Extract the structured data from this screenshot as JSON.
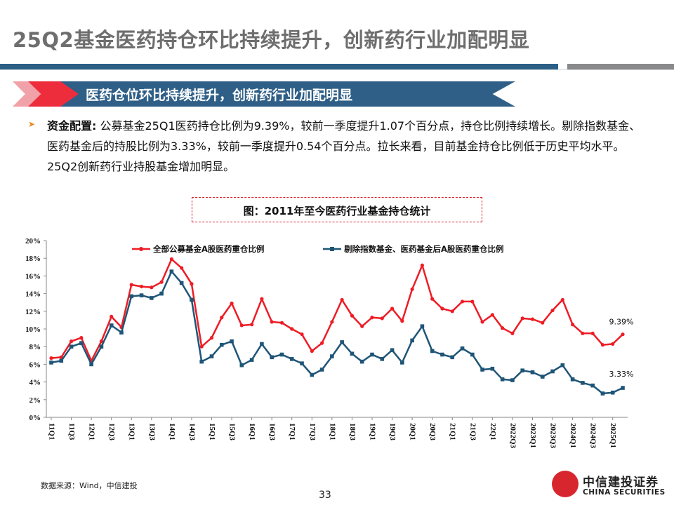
{
  "header": {
    "title": "25Q2基金医药持仓环比持续提升，创新药行业加配明显",
    "banner": "医药仓位环比持续提升，创新药行业加配明显"
  },
  "body": {
    "bullet_label": "资金配置:",
    "bullet_text": " 公募基金25Q1医药持仓比例为9.39%，较前一季度提升1.07个百分点，持仓比例持续增长。剔除指数基金、医药基金后的持股比例为3.33%，较前一季度提升0.54个百分点。拉长来看，目前基金持仓比例低于历史平均水平。25Q2创新药行业持股基金增加明显。"
  },
  "figure": {
    "title": "图：2011年至今医药行业基金持仓统计"
  },
  "chart_data": {
    "type": "line",
    "ylim": [
      0,
      20
    ],
    "yticks": [
      "0%",
      "2%",
      "4%",
      "6%",
      "8%",
      "10%",
      "12%",
      "14%",
      "16%",
      "18%",
      "20%"
    ],
    "xtick_labels": [
      "11Q1",
      "11Q3",
      "12Q1",
      "12Q3",
      "13Q1",
      "13Q3",
      "14Q1",
      "14Q3",
      "15Q1",
      "15Q3",
      "16Q1",
      "16Q3",
      "17Q1",
      "17Q3",
      "18Q1",
      "18Q3",
      "19Q1",
      "19Q3",
      "20Q1",
      "20Q3",
      "21Q1",
      "21Q3",
      "22Q1",
      "2022Q3",
      "2023Q1",
      "2023Q3",
      "2024Q1",
      "2024Q3",
      "2025Q1"
    ],
    "series": [
      {
        "name": "全部公募基金A股医药重仓比例",
        "color": "#ee1c25",
        "values": [
          6.7,
          6.8,
          8.6,
          9.0,
          6.4,
          8.6,
          11.4,
          10.2,
          15.0,
          14.8,
          14.7,
          15.3,
          17.9,
          16.9,
          15.1,
          8.0,
          9.0,
          11.3,
          12.9,
          10.4,
          10.5,
          13.4,
          10.8,
          10.7,
          10.0,
          9.4,
          7.5,
          8.4,
          10.8,
          13.3,
          11.5,
          10.3,
          11.3,
          11.2,
          12.3,
          10.9,
          14.5,
          17.2,
          13.4,
          12.3,
          12.0,
          13.1,
          13.1,
          10.8,
          11.6,
          10.1,
          9.5,
          11.2,
          11.1,
          10.7,
          12.1,
          13.3,
          10.5,
          9.5,
          9.5,
          8.2,
          8.3,
          9.39
        ]
      },
      {
        "name": "剔除指数基金、医药基金后A股医药重仓比例",
        "color": "#1f5577",
        "values": [
          6.2,
          6.4,
          8.0,
          8.4,
          6.0,
          8.0,
          10.4,
          9.6,
          13.7,
          13.8,
          13.5,
          14.0,
          16.5,
          15.2,
          13.3,
          6.3,
          6.9,
          8.2,
          8.6,
          5.9,
          6.5,
          8.3,
          6.8,
          7.1,
          6.6,
          6.1,
          4.8,
          5.4,
          6.9,
          8.5,
          7.2,
          6.3,
          7.1,
          6.6,
          7.6,
          6.2,
          8.7,
          10.3,
          7.5,
          7.1,
          6.8,
          7.8,
          7.1,
          5.4,
          5.5,
          4.3,
          4.2,
          5.3,
          5.1,
          4.6,
          5.2,
          5.9,
          4.3,
          3.9,
          3.6,
          2.7,
          2.8,
          3.33
        ]
      }
    ],
    "end_labels": [
      "9.39%",
      "3.33%"
    ]
  },
  "footer": {
    "source": "数据来源：Wind，中信建投",
    "page": "33",
    "logo_cn": "中信建投证券",
    "logo_en": "CHINA SECURITIES"
  }
}
